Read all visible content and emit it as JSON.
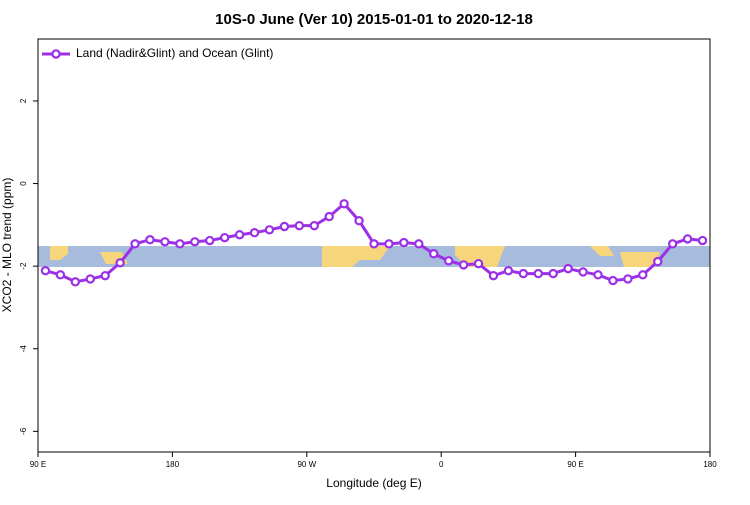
{
  "chart_data": {
    "type": "line",
    "title": "10S-0 June (Ver 10)   2015-01-01 to 2020-12-18",
    "x_label": "Longitude (deg E)",
    "y_label": "XCO2 - MLO trend (ppm)",
    "xlim": [
      90,
      540
    ],
    "xticks": [
      {
        "value": 90,
        "label": "90 E"
      },
      180,
      {
        "value": 270,
        "label": "90 W"
      },
      {
        "value": 360,
        "label": "0"
      },
      {
        "value": 450,
        "label": "90 E"
      },
      {
        "value": 540,
        "label": "180"
      }
    ],
    "ylim": [
      -6.5,
      3.5
    ],
    "yticks": [
      -6,
      -4,
      -2,
      0,
      2
    ],
    "legend": "top-left",
    "x": [
      95,
      105,
      115,
      125,
      135,
      145,
      155,
      165,
      175,
      185,
      195,
      205,
      215,
      225,
      235,
      245,
      255,
      265,
      275,
      285,
      295,
      305,
      315,
      325,
      335,
      345,
      355,
      365,
      375,
      385,
      395,
      405,
      415,
      425,
      435,
      445,
      455,
      465,
      475,
      485,
      495,
      505,
      515,
      525,
      535
    ],
    "series": [
      {
        "name": "Land (Nadir&Glint) and Ocean (Glint)",
        "color": "#9b30e6",
        "values": [
          -2.11,
          -2.21,
          -2.38,
          -2.31,
          -2.23,
          -1.92,
          -1.46,
          -1.36,
          -1.41,
          -1.46,
          -1.41,
          -1.38,
          -1.31,
          -1.24,
          -1.19,
          -1.12,
          -1.04,
          -1.02,
          -1.02,
          -0.8,
          -0.49,
          -0.9,
          -1.46,
          -1.46,
          -1.43,
          -1.46,
          -1.7,
          -1.87,
          -1.97,
          -1.94,
          -2.23,
          -2.11,
          -2.18,
          -2.18,
          -2.18,
          -2.06,
          -2.14,
          -2.21,
          -2.35,
          -2.31,
          -2.21,
          -1.89,
          -1.46,
          -1.34,
          -1.38
        ]
      }
    ]
  }
}
